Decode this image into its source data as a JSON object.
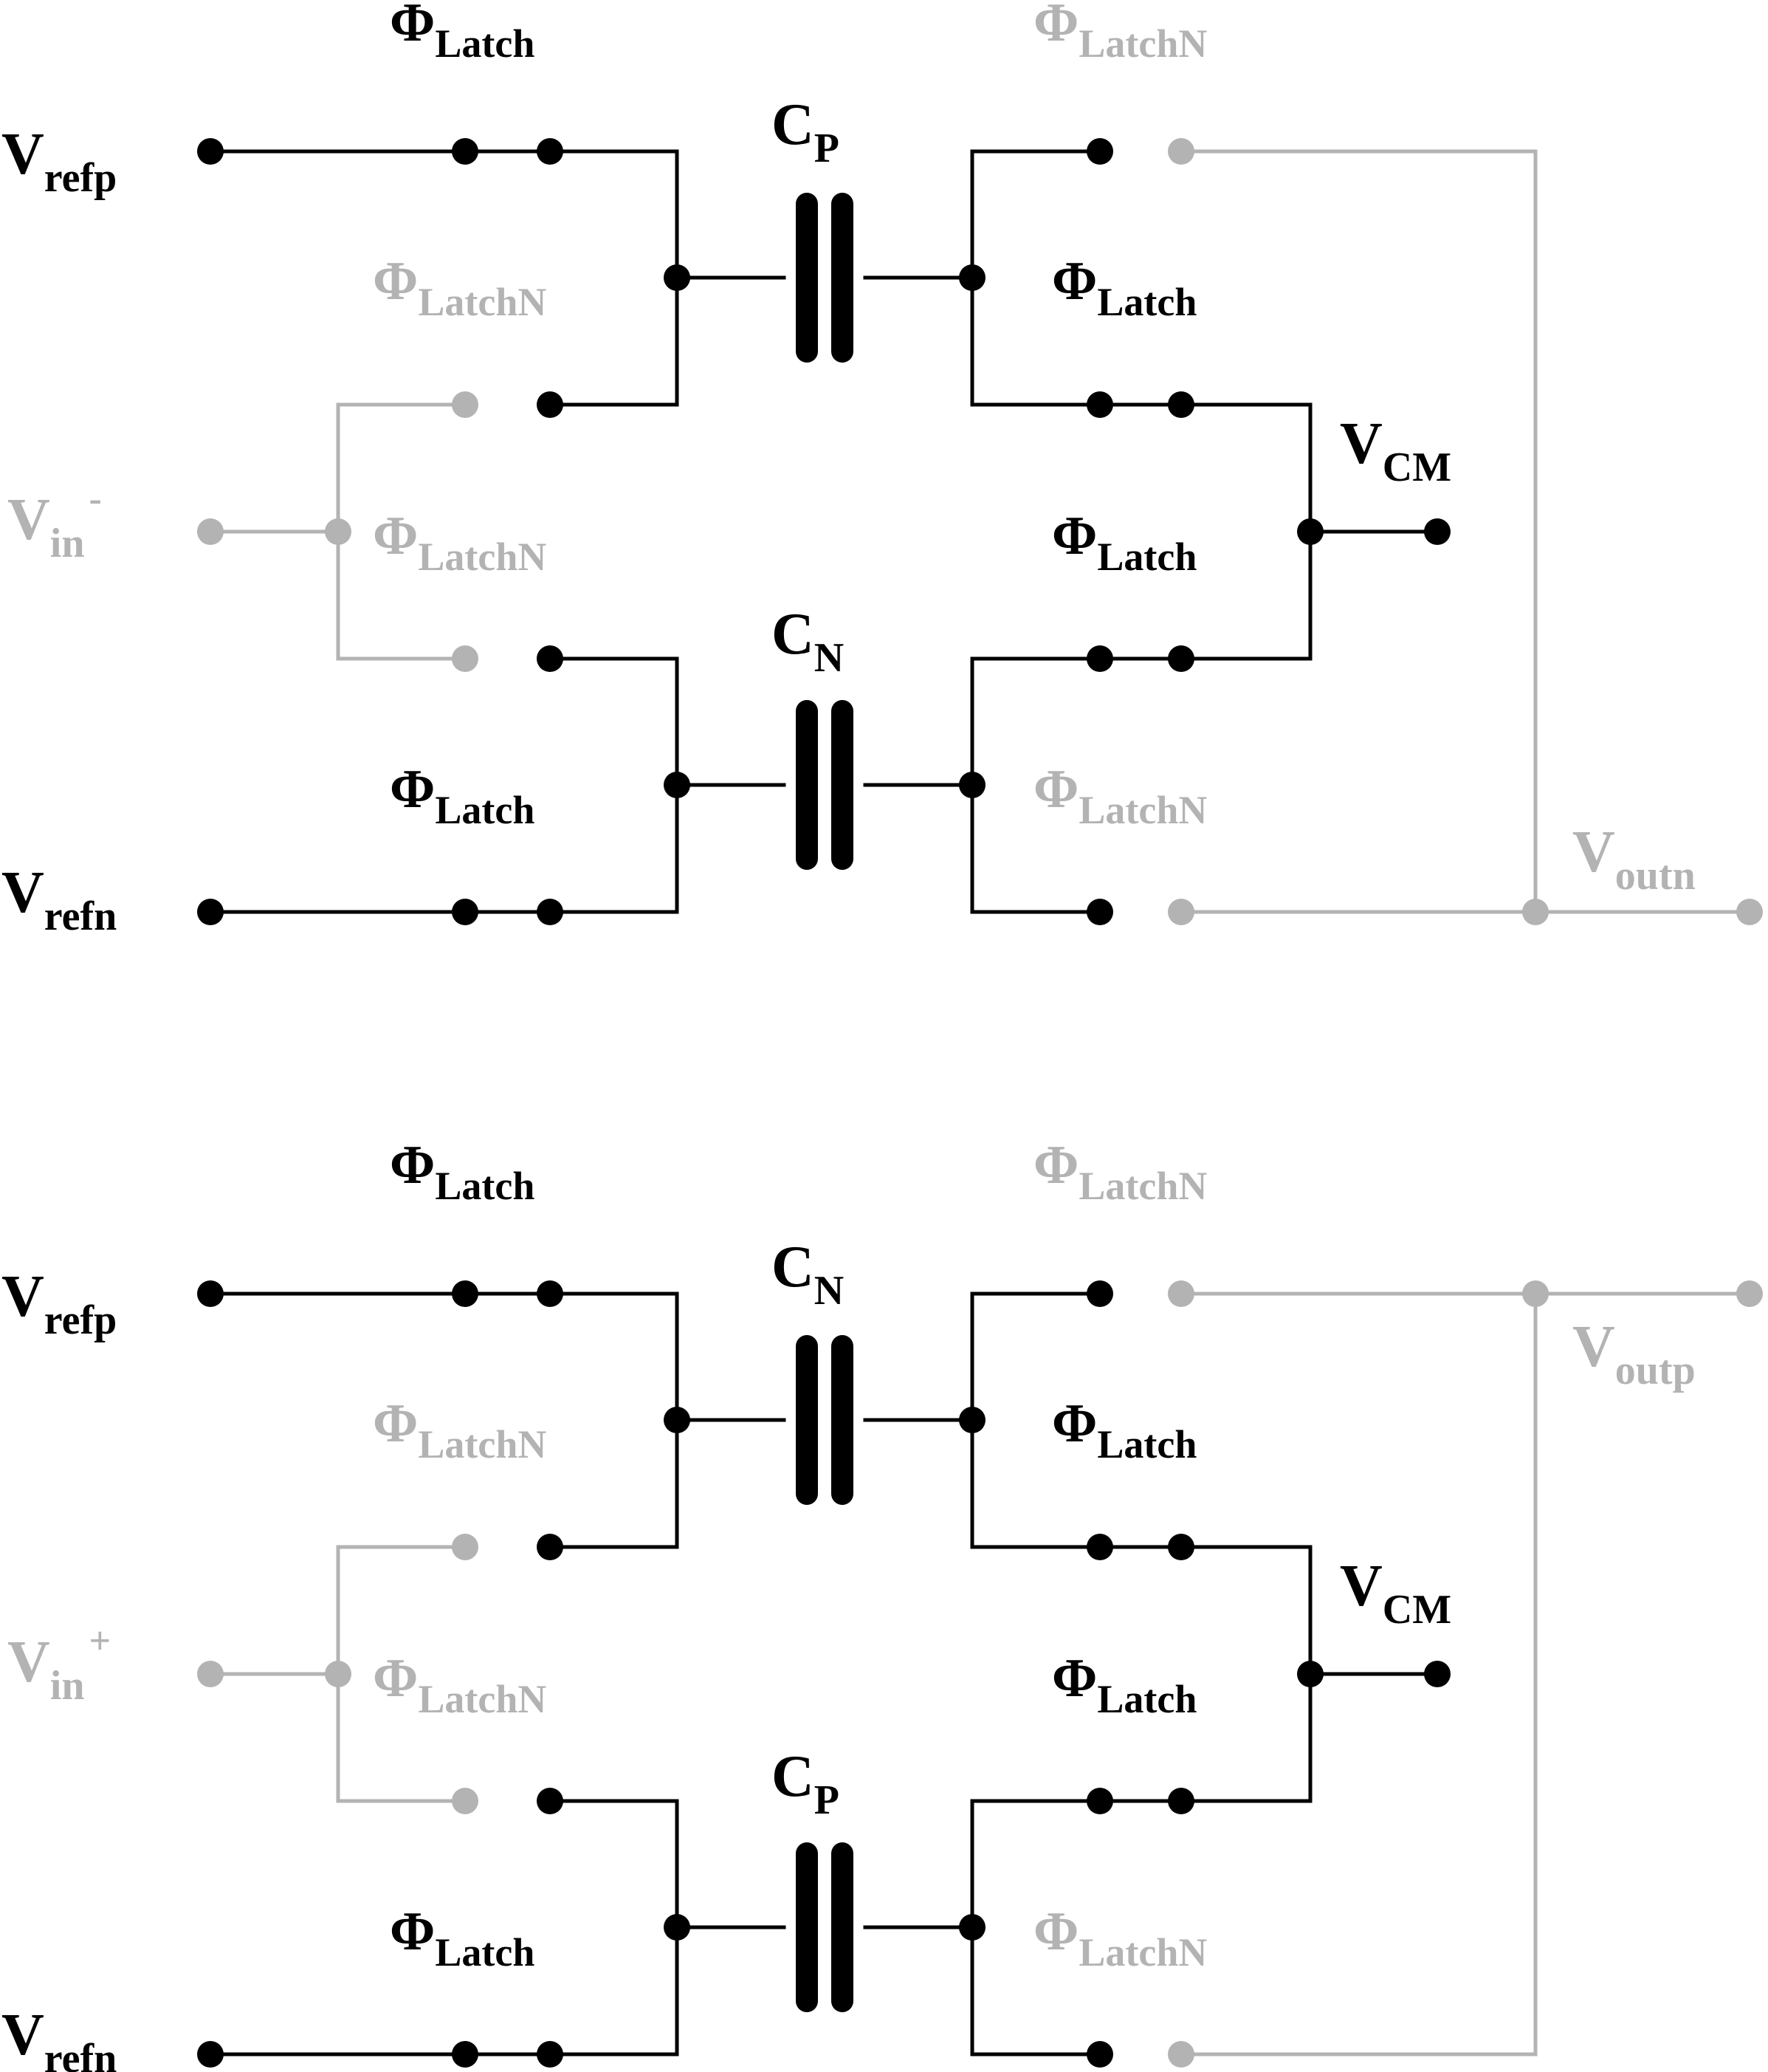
{
  "colors": {
    "active": "#000000",
    "inactive": "#b3b3b3"
  },
  "circuits": [
    {
      "name": "negative-half",
      "ref_top": {
        "main": "V",
        "sub": "refp"
      },
      "ref_bottom": {
        "main": "V",
        "sub": "refn"
      },
      "input": {
        "main": "V",
        "sub": "in",
        "sup": "-"
      },
      "cap_top": {
        "main": "C",
        "sub": "P"
      },
      "cap_bottom": {
        "main": "C",
        "sub": "N"
      },
      "vcm": {
        "main": "V",
        "sub": "CM"
      },
      "output": {
        "main": "V",
        "sub": "outn"
      },
      "phases": {
        "latch": {
          "main": "Φ",
          "sub": "Latch"
        },
        "latch_n": {
          "main": "Φ",
          "sub": "LatchN"
        }
      }
    },
    {
      "name": "positive-half",
      "ref_top": {
        "main": "V",
        "sub": "refp"
      },
      "ref_bottom": {
        "main": "V",
        "sub": "refn"
      },
      "input": {
        "main": "V",
        "sub": "in",
        "sup": "+"
      },
      "cap_top": {
        "main": "C",
        "sub": "N"
      },
      "cap_bottom": {
        "main": "C",
        "sub": "P"
      },
      "vcm": {
        "main": "V",
        "sub": "CM"
      },
      "output": {
        "main": "V",
        "sub": "outp"
      },
      "phases": {
        "latch": {
          "main": "Φ",
          "sub": "Latch"
        },
        "latch_n": {
          "main": "Φ",
          "sub": "LatchN"
        }
      }
    }
  ]
}
